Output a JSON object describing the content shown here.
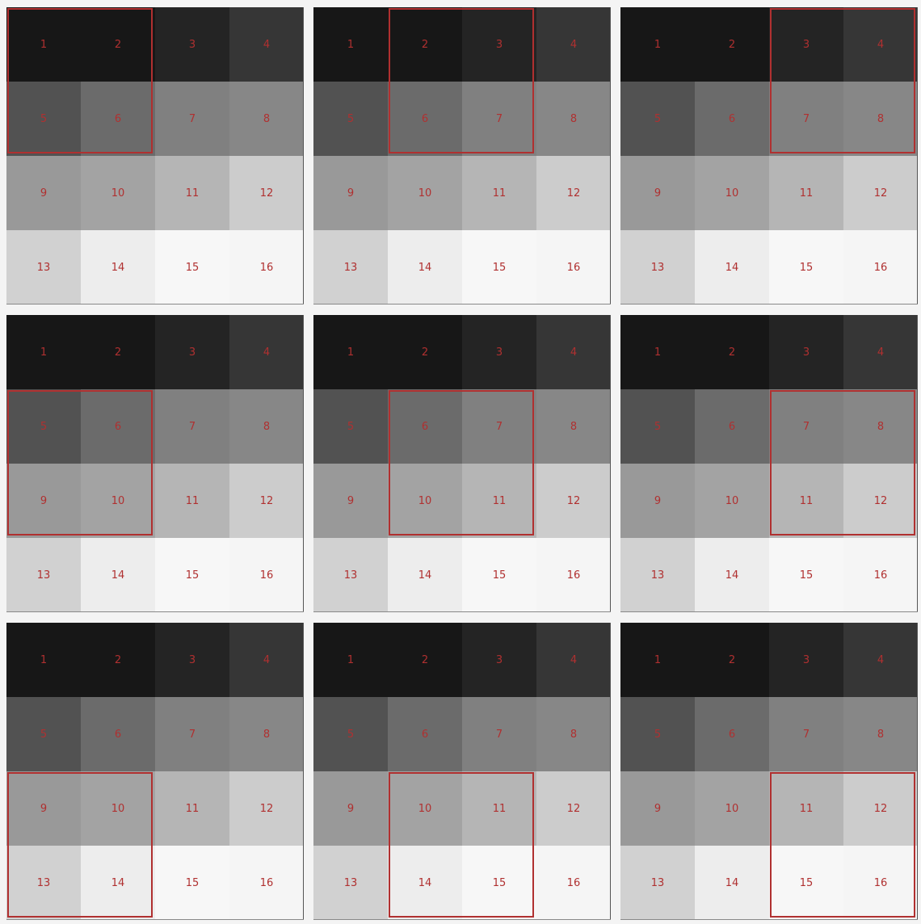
{
  "grid": {
    "rows": 4,
    "cols": 4,
    "labels": [
      "1",
      "2",
      "3",
      "4",
      "5",
      "6",
      "7",
      "8",
      "9",
      "10",
      "11",
      "12",
      "13",
      "14",
      "15",
      "16"
    ],
    "gray_levels": [
      0.09,
      0.09,
      0.14,
      0.21,
      0.32,
      0.42,
      0.5,
      0.53,
      0.6,
      0.64,
      0.71,
      0.8,
      0.82,
      0.93,
      0.97,
      0.96
    ]
  },
  "window_size": 2,
  "panels": [
    {
      "window_row": 0,
      "window_col": 0
    },
    {
      "window_row": 0,
      "window_col": 1
    },
    {
      "window_row": 0,
      "window_col": 2
    },
    {
      "window_row": 1,
      "window_col": 0
    },
    {
      "window_row": 1,
      "window_col": 1
    },
    {
      "window_row": 1,
      "window_col": 2
    },
    {
      "window_row": 2,
      "window_col": 0
    },
    {
      "window_row": 2,
      "window_col": 1
    },
    {
      "window_row": 2,
      "window_col": 2
    }
  ],
  "colors": {
    "label": "#b03030",
    "window_border": "#b03030",
    "background": "#f4f4f4"
  }
}
